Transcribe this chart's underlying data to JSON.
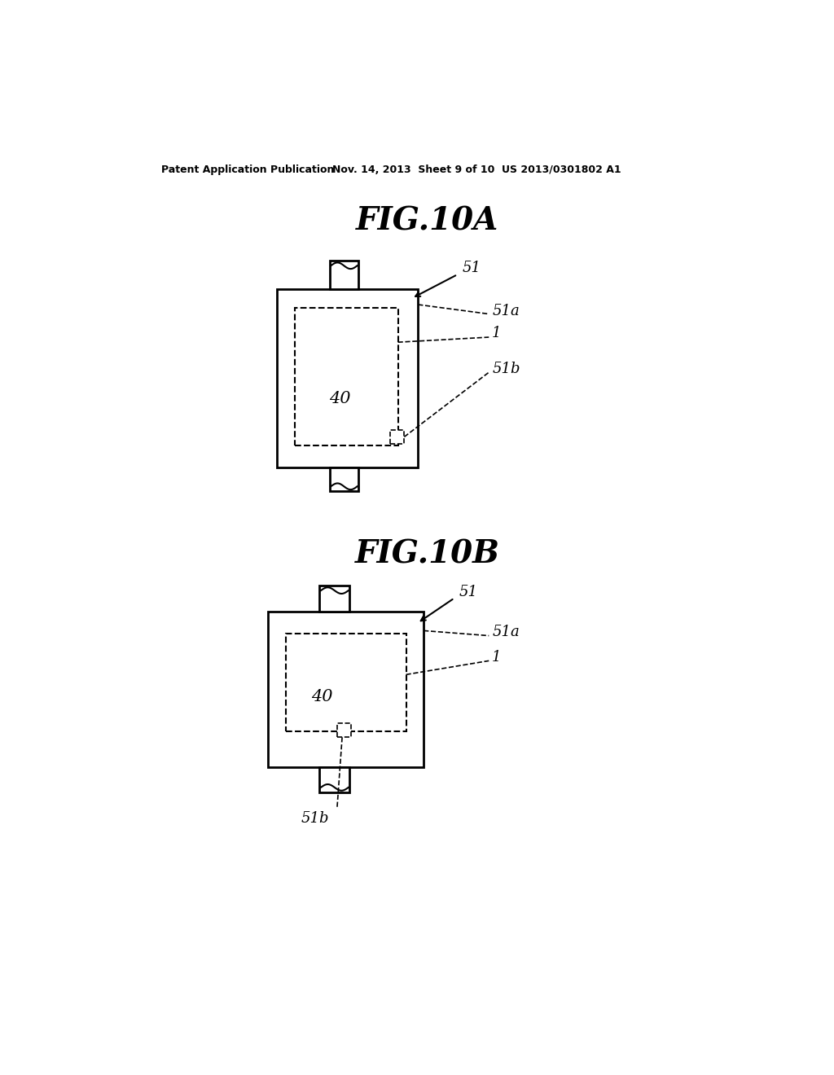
{
  "bg_color": "#ffffff",
  "header_left": "Patent Application Publication",
  "header_mid": "Nov. 14, 2013  Sheet 9 of 10",
  "header_right": "US 2013/0301802 A1",
  "fig_title_A": "FIG.10A",
  "fig_title_B": "FIG.10B",
  "label_51": "51",
  "label_51a": "51a",
  "label_1": "1",
  "label_51b": "51b",
  "label_40": "40"
}
